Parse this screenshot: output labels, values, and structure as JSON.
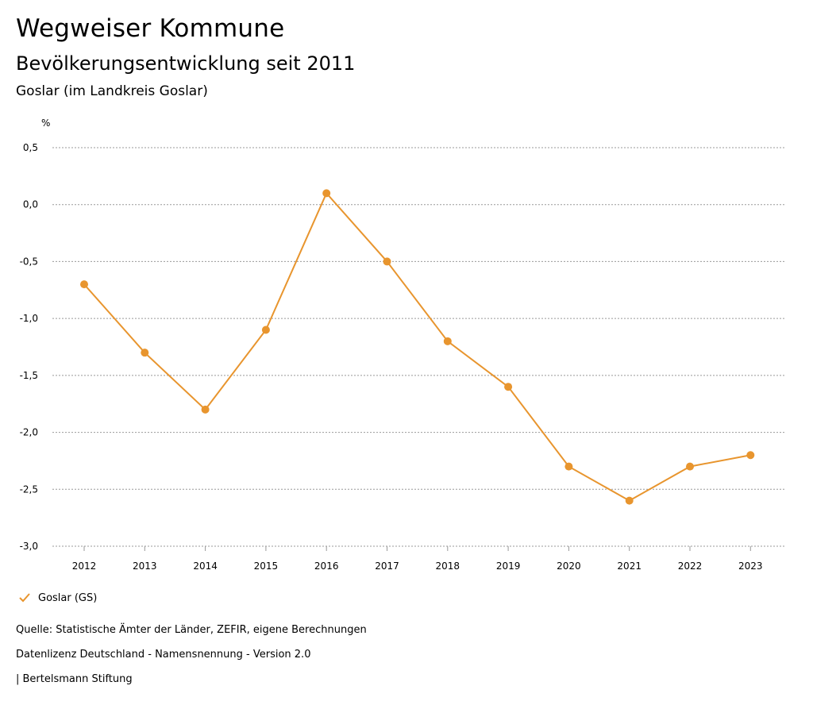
{
  "header": {
    "title": "Wegweiser Kommune",
    "subtitle": "Bevölkerungsentwicklung seit 2011",
    "region": "Goslar (im Landkreis Goslar)"
  },
  "chart_data": {
    "type": "line",
    "unit_label": "%",
    "categories": [
      "2012",
      "2013",
      "2014",
      "2015",
      "2016",
      "2017",
      "2018",
      "2019",
      "2020",
      "2021",
      "2022",
      "2023"
    ],
    "series": [
      {
        "name": "Goslar (GS)",
        "color": "#e8952e",
        "values": [
          -0.7,
          -1.3,
          -1.8,
          -1.1,
          0.1,
          -0.5,
          -1.2,
          -1.6,
          -2.3,
          -2.6,
          -2.3,
          -2.2
        ]
      }
    ],
    "yticks": [
      "0,5",
      "0,0",
      "-0,5",
      "-1,0",
      "-1,5",
      "-2,0",
      "-2,5",
      "-3,0"
    ],
    "ytick_values": [
      0.5,
      0.0,
      -0.5,
      -1.0,
      -1.5,
      -2.0,
      -2.5,
      -3.0
    ],
    "ylim": [
      -3.0,
      0.5
    ],
    "grid": true,
    "legend_position": "bottom-left"
  },
  "footer": {
    "source": "Quelle: Statistische Ämter der Länder, ZEFIR, eigene Berechnungen",
    "license": "Datenlizenz Deutschland - Namensnennung - Version 2.0",
    "publisher": "| Bertelsmann Stiftung"
  }
}
